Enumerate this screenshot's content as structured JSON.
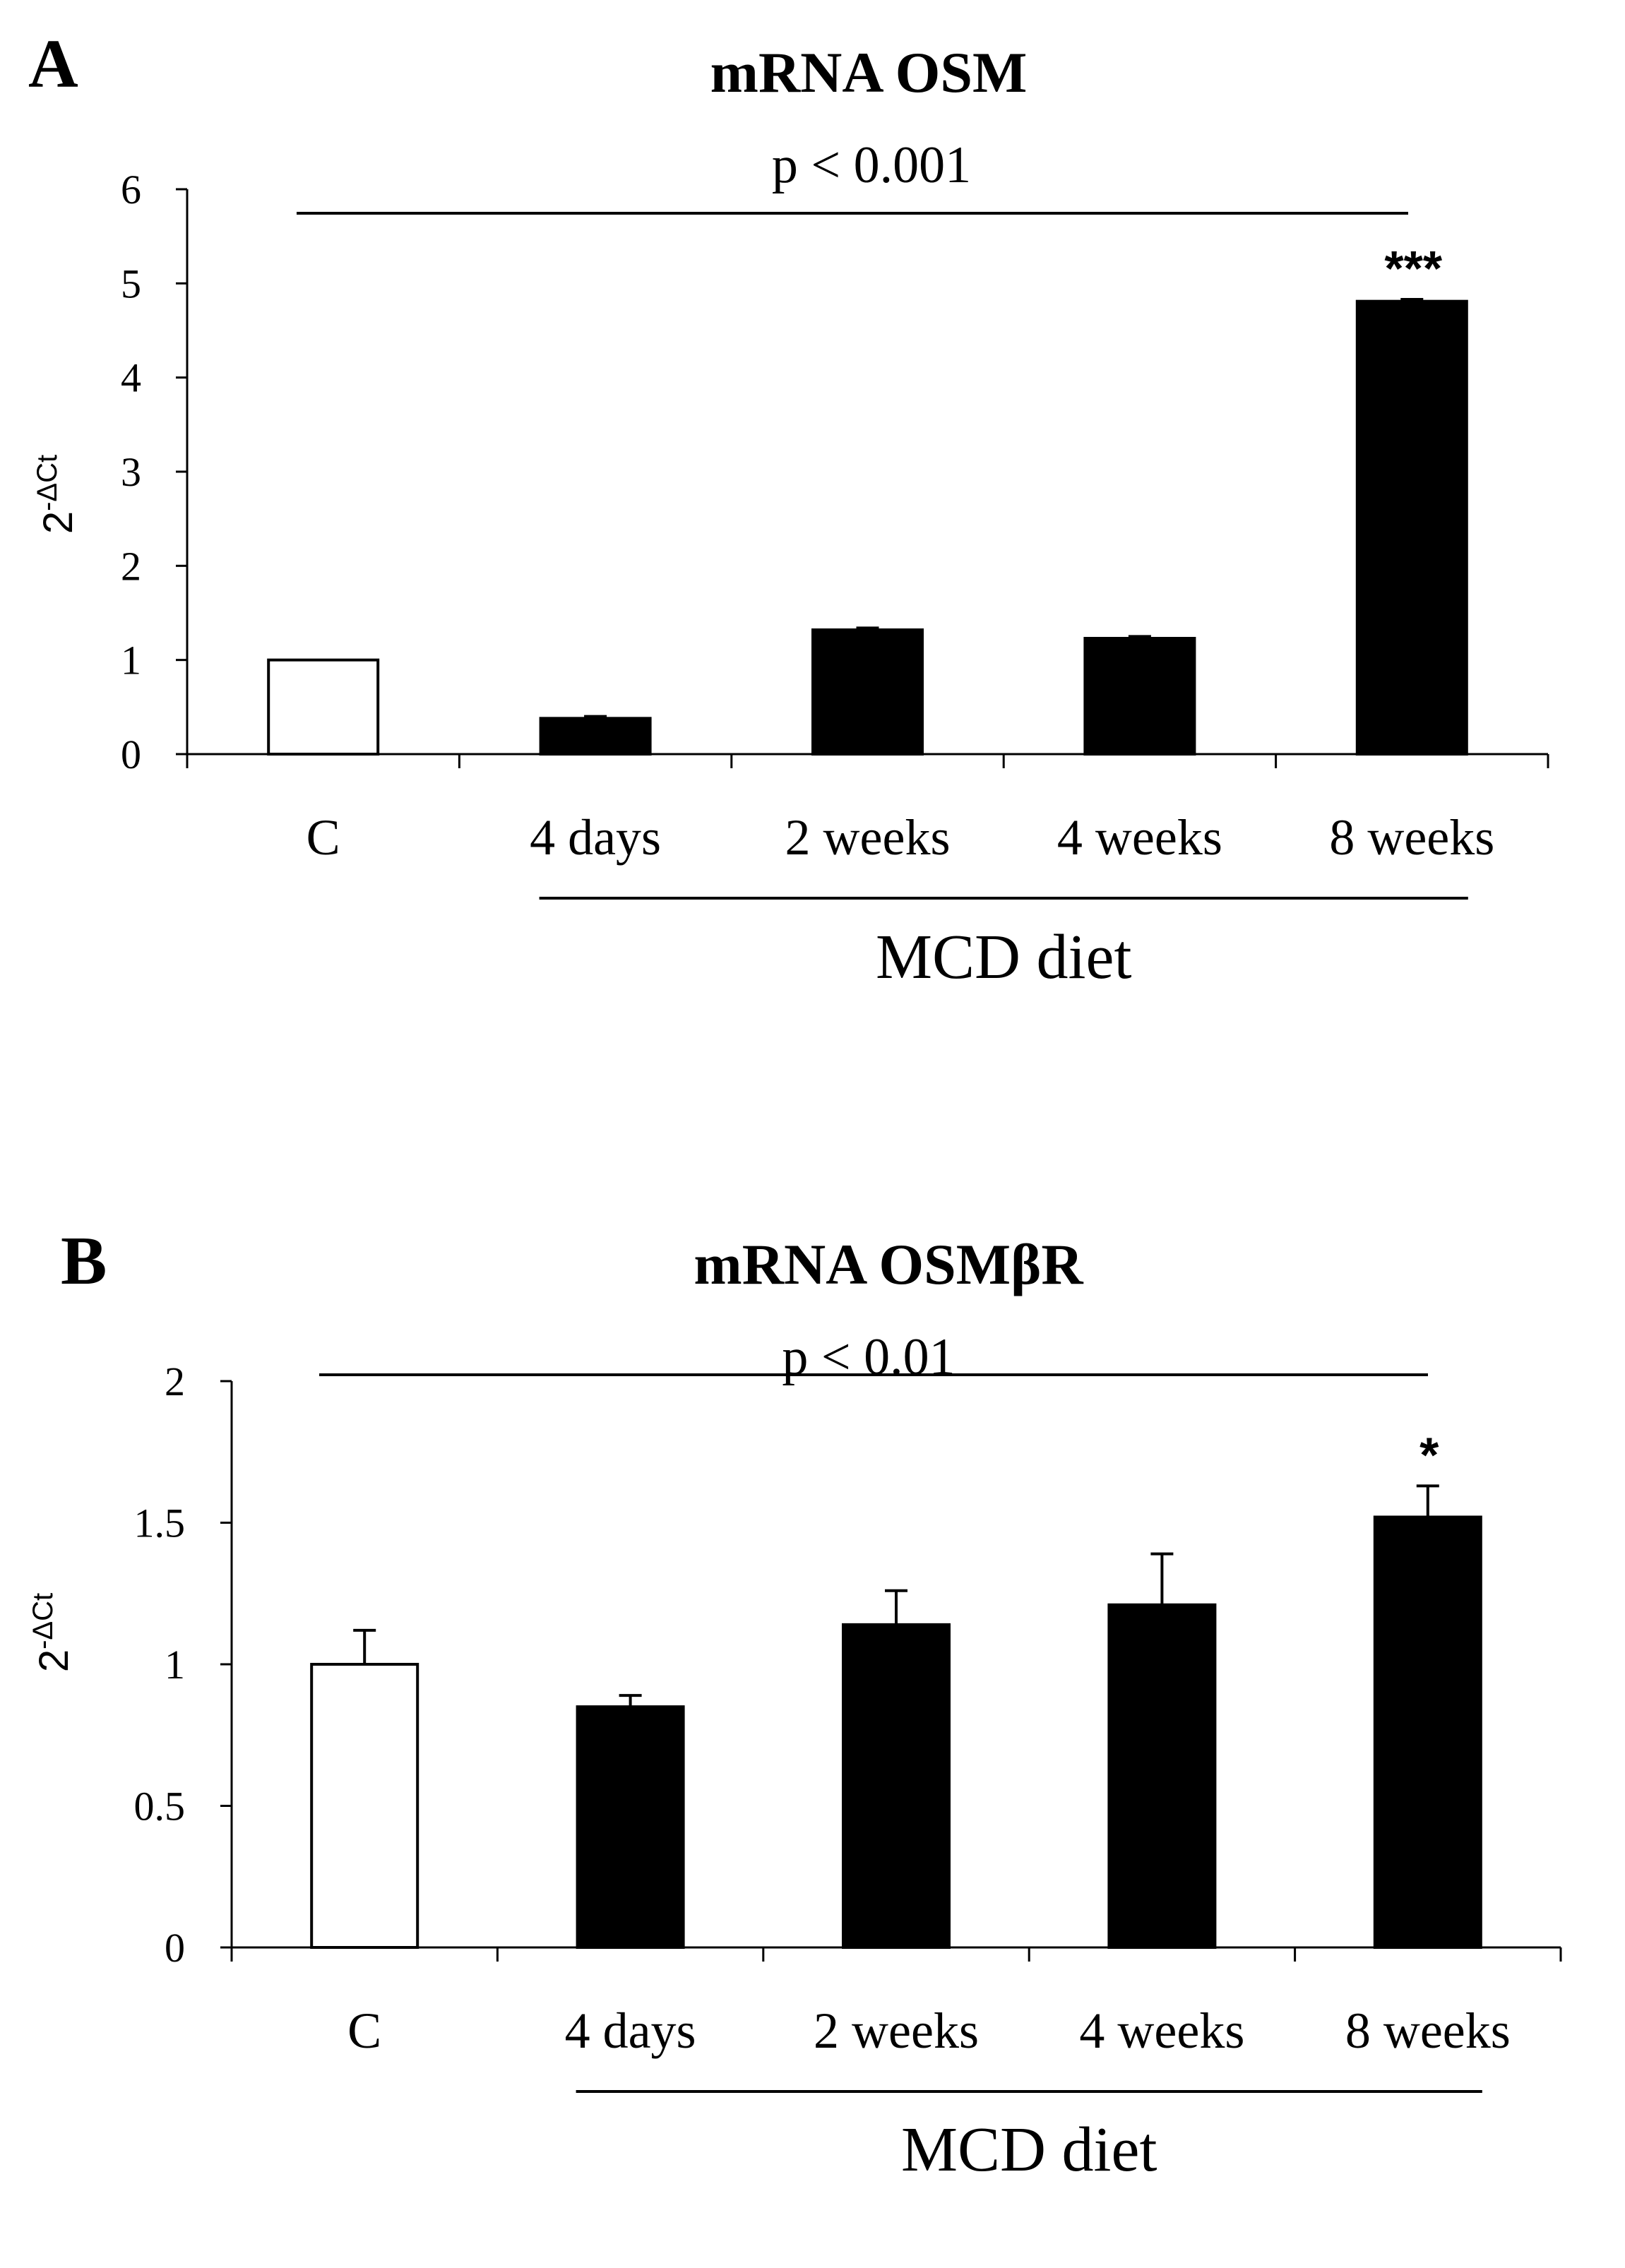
{
  "colors": {
    "control_fill": "#ffffff",
    "treatment_fill": "#000000",
    "stroke": "#000000"
  },
  "chart_data": [
    {
      "type": "bar",
      "panel": "A",
      "title": "mRNA OSM",
      "pvalue": "p < 0.001",
      "ylabel": "2",
      "ylabel_sup": "-ΔCt",
      "ylim": [
        0,
        6
      ],
      "yticks": [
        0,
        1,
        2,
        3,
        4,
        5,
        6
      ],
      "categories": [
        "C",
        "4 days",
        "2 weeks",
        "4 weeks",
        "8 weeks"
      ],
      "values": [
        1.0,
        0.38,
        1.32,
        1.23,
        4.81
      ],
      "errors": [
        0.0,
        0.02,
        0.02,
        0.02,
        0.02
      ],
      "significance": [
        "",
        "",
        "",
        "",
        "***"
      ],
      "group_label": "MCD diet",
      "group_from": 1,
      "group_to": 4
    },
    {
      "type": "bar",
      "panel": "B",
      "title": "mRNA OSMβR",
      "pvalue": "p < 0.01",
      "ylabel": "2",
      "ylabel_sup": "-ΔCt",
      "ylim": [
        0,
        2
      ],
      "yticks": [
        0,
        0.5,
        1,
        1.5,
        2
      ],
      "categories": [
        "C",
        "4 days",
        "2 weeks",
        "4 weeks",
        "8 weeks"
      ],
      "values": [
        1.0,
        0.85,
        1.14,
        1.21,
        1.52
      ],
      "errors": [
        0.12,
        0.04,
        0.12,
        0.18,
        0.11
      ],
      "significance": [
        "",
        "",
        "",
        "",
        "*"
      ],
      "group_label": "MCD diet",
      "group_from": 1,
      "group_to": 4
    }
  ]
}
